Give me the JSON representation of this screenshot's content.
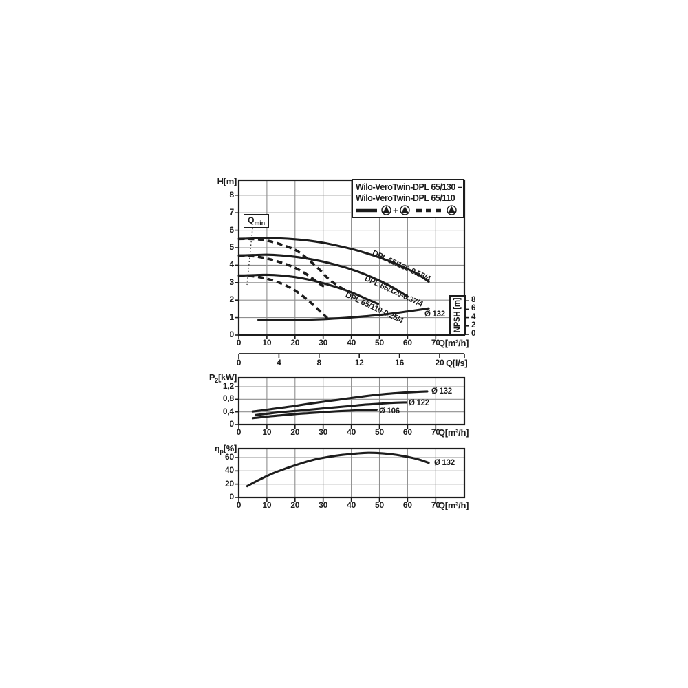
{
  "page": {
    "bg": "#ffffff",
    "ink": "#1c1c1c",
    "grid_color": "#8f8f8f"
  },
  "legend": {
    "line1": "Wilo-VeroTwin-DPL 65/130 –",
    "line2": "Wilo-VeroTwin-DPL 65/110",
    "plus": "+",
    "items": [
      {
        "line_style": "solid",
        "pumps": 2
      },
      {
        "line_style": "dashed",
        "pumps": 1
      }
    ]
  },
  "qmin": {
    "base": "Q",
    "sub": "min"
  },
  "chart_data": [
    {
      "type": "line",
      "name": "head-flow-curves",
      "ylabel": "H[m]",
      "xlabel": "Q[m³/h]",
      "x2label": "Q[l/s]",
      "xlim": [
        0,
        80
      ],
      "ylim": [
        0,
        8.85
      ],
      "grid": true,
      "x_ticks": [
        0,
        10,
        20,
        30,
        40,
        50,
        60,
        70
      ],
      "y_ticks": [
        0,
        1,
        2,
        3,
        4,
        5,
        6,
        7,
        8
      ],
      "x2_ticks": [
        0,
        4,
        8,
        12,
        16,
        20
      ],
      "qmin_x": 5,
      "npsh_axis": {
        "label": "NPSH [m]",
        "ticks": [
          0,
          2,
          4,
          6,
          8
        ]
      },
      "series": [
        {
          "name": "DPL 65/130-0.55/4",
          "style": "solid",
          "x": [
            0,
            5,
            10,
            15,
            20,
            25,
            30,
            35,
            40,
            45,
            50,
            55,
            60,
            64,
            67.5
          ],
          "y": [
            5.5,
            5.53,
            5.55,
            5.53,
            5.48,
            5.4,
            5.28,
            5.12,
            4.93,
            4.7,
            4.44,
            4.13,
            3.78,
            3.45,
            3.05
          ]
        },
        {
          "name": "DPL 65/120-0.37/4",
          "style": "solid",
          "x": [
            0,
            5,
            10,
            15,
            20,
            25,
            30,
            35,
            40,
            45,
            50,
            55,
            60
          ],
          "y": [
            4.55,
            4.58,
            4.6,
            4.56,
            4.48,
            4.36,
            4.2,
            4.0,
            3.76,
            3.47,
            3.12,
            2.7,
            2.2
          ]
        },
        {
          "name": "DPL 65/110-0.25/4",
          "style": "solid",
          "x": [
            0,
            5,
            10,
            15,
            20,
            25,
            30,
            35,
            40,
            45,
            49.5
          ],
          "y": [
            3.4,
            3.43,
            3.45,
            3.41,
            3.32,
            3.17,
            2.97,
            2.73,
            2.45,
            2.1,
            1.78
          ]
        },
        {
          "name": "DPL 65/130-0.55/4 single-pump",
          "style": "dashed",
          "x": [
            0,
            4,
            8,
            12,
            16,
            20,
            23,
            26,
            29,
            32,
            35,
            37.5
          ],
          "y": [
            5.5,
            5.5,
            5.46,
            5.33,
            5.13,
            4.88,
            4.55,
            4.15,
            3.7,
            3.2,
            2.85,
            2.6
          ]
        },
        {
          "name": "DPL 65/120-0.37/4 single-pump",
          "style": "dashed",
          "x": [
            0,
            4,
            8,
            12,
            15,
            19,
            22,
            25,
            28,
            30.5
          ],
          "y": [
            4.55,
            4.53,
            4.45,
            4.3,
            4.15,
            3.92,
            3.68,
            3.38,
            3.02,
            2.75
          ]
        },
        {
          "name": "DPL 65/110-0.25/4 single-pump",
          "style": "dashed",
          "x": [
            0,
            4,
            8,
            11,
            14,
            17,
            20,
            23,
            26,
            29,
            31.5
          ],
          "y": [
            3.4,
            3.38,
            3.3,
            3.18,
            3.02,
            2.82,
            2.55,
            2.2,
            1.8,
            1.35,
            0.97
          ]
        },
        {
          "name": "Ø 132",
          "style": "solid",
          "axis": "npsh",
          "x": [
            7,
            12,
            18,
            25,
            32,
            40,
            48,
            56,
            62,
            67.5
          ],
          "y": [
            3.45,
            3.4,
            3.4,
            3.5,
            3.7,
            4.05,
            4.5,
            5.1,
            5.65,
            6.2
          ]
        }
      ]
    },
    {
      "type": "line",
      "name": "power-flow-curves",
      "ylabel": "P2[kW]",
      "ylabel_parts": {
        "base": "P",
        "sub": "2",
        "unit": "[kW]"
      },
      "xlabel": "Q[m³/h]",
      "xlim": [
        0,
        80
      ],
      "ylim": [
        0,
        1.48
      ],
      "grid": true,
      "x_ticks": [
        0,
        10,
        20,
        30,
        40,
        50,
        60,
        70
      ],
      "y_ticks": [
        0,
        0.4,
        0.8,
        1.2
      ],
      "y_tick_labels": [
        "0",
        "0,4",
        "0,8",
        "1,2"
      ],
      "series": [
        {
          "name": "Ø 132",
          "style": "solid",
          "x": [
            5,
            10,
            15,
            20,
            25,
            30,
            35,
            40,
            45,
            50,
            55,
            60,
            64,
            67
          ],
          "y": [
            0.41,
            0.47,
            0.53,
            0.59,
            0.66,
            0.72,
            0.78,
            0.84,
            0.9,
            0.95,
            0.99,
            1.02,
            1.04,
            1.05
          ]
        },
        {
          "name": "Ø 122",
          "style": "solid",
          "x": [
            6,
            10,
            15,
            20,
            25,
            30,
            35,
            40,
            45,
            50,
            55,
            59.5
          ],
          "y": [
            0.3,
            0.34,
            0.39,
            0.43,
            0.47,
            0.51,
            0.55,
            0.59,
            0.63,
            0.66,
            0.69,
            0.7
          ]
        },
        {
          "name": "Ø 106",
          "style": "solid",
          "x": [
            5,
            10,
            15,
            20,
            25,
            30,
            35,
            40,
            45,
            49
          ],
          "y": [
            0.2,
            0.25,
            0.29,
            0.33,
            0.36,
            0.39,
            0.42,
            0.44,
            0.46,
            0.47
          ]
        }
      ]
    },
    {
      "type": "line",
      "name": "efficiency-flow-curve",
      "ylabel": "ηp[%]",
      "ylabel_parts": {
        "base": "η",
        "sub": "p",
        "unit": "[%]"
      },
      "xlabel": "Q[m³/h]",
      "xlim": [
        0,
        80
      ],
      "ylim": [
        0,
        73
      ],
      "grid": true,
      "x_ticks": [
        0,
        10,
        20,
        30,
        40,
        50,
        60,
        70
      ],
      "y_ticks": [
        0,
        20,
        40,
        60
      ],
      "series": [
        {
          "name": "Ø 132",
          "style": "solid",
          "x": [
            3,
            7,
            12,
            17,
            22,
            27,
            32,
            37,
            42,
            46,
            50,
            55,
            60,
            64,
            67.5
          ],
          "y": [
            17,
            26,
            36,
            44,
            51,
            57,
            61,
            64,
            66,
            67,
            66.5,
            64.5,
            61,
            57,
            52
          ]
        }
      ]
    }
  ]
}
